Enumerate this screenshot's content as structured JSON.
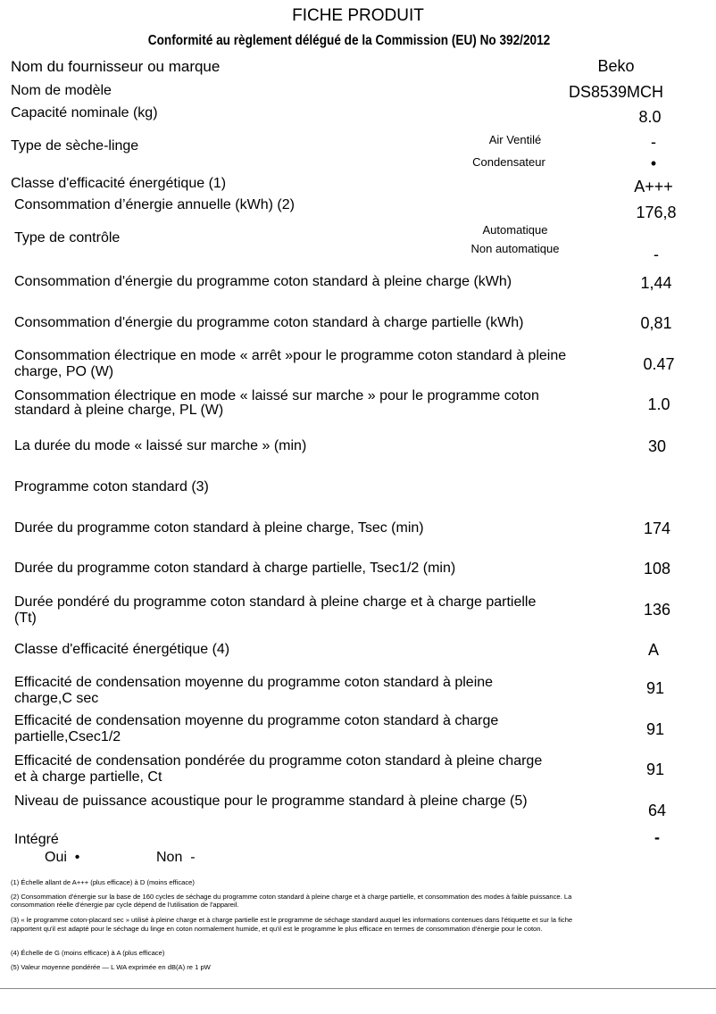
{
  "title": "FICHE PRODUIT",
  "subtitle": "Conformité au règlement délégué de la Commission (EU) No 392/2012",
  "rows": {
    "supplier": {
      "label": "Nom du fournisseur ou marque",
      "value": "Beko"
    },
    "model": {
      "label": "Nom de modèle",
      "value": "DS8539MCH"
    },
    "capacity": {
      "label": "Capacité nominale (kg)",
      "value": "8.0"
    },
    "dryer_type": {
      "label": "Type de sèche-linge",
      "opt1": "Air Ventilé",
      "val1": "-",
      "opt2": "Condensateur",
      "val2": "•"
    },
    "energy_class": {
      "label": "Classe d'efficacité énergétique (1)",
      "value": "A+++"
    },
    "annual": {
      "label": "Consommation d’énergie annuelle (kWh) (2)",
      "value": "176,8"
    },
    "control": {
      "label": "Type de contrôle",
      "opt1": "Automatique",
      "val1": "",
      "opt2": "Non automatique",
      "val2": "-"
    },
    "e_full": {
      "label": "Consommation d'énergie du programme coton standard à pleine charge (kWh)",
      "value": "1,44"
    },
    "e_part": {
      "label": "Consommation d'énergie du programme coton standard à charge partielle (kWh)",
      "value": "0,81"
    },
    "po": {
      "label": "Consommation électrique en mode « arrêt »pour le programme coton standard à pleine charge, PO (W)",
      "value": "0.47"
    },
    "pl": {
      "label": "Consommation électrique en mode « laissé sur marche » pour le programme coton standard à pleine charge, PL (W)",
      "value": "1.0"
    },
    "left_on": {
      "label": "La durée du mode « laissé sur marche » (min)",
      "value": "30"
    },
    "std_prog": {
      "label": "Programme coton standard (3)"
    },
    "t_full": {
      "label": "Durée du programme coton standard à pleine charge, Tsec (min)",
      "value": "174"
    },
    "t_part": {
      "label": "Durée du programme coton standard à charge partielle, Tsec1/2 (min)",
      "value": "108"
    },
    "t_weighted": {
      "label": "Durée pondéré du programme coton standard à pleine charge et à charge partielle (Tt)",
      "value": "136"
    },
    "cond_class": {
      "label": "Classe d'efficacité énergétique (4)",
      "value": "A"
    },
    "c_full": {
      "label": "Efficacité de condensation moyenne du programme coton standard à pleine charge,C sec",
      "value": "91"
    },
    "c_part": {
      "label": "Efficacité de condensation moyenne du programme coton standard à charge partielle,Csec1/2",
      "value": "91"
    },
    "c_weighted": {
      "label": "Efficacité de condensation pondérée du programme coton standard à pleine charge et à charge partielle, Ct",
      "value": "91"
    },
    "noise": {
      "label": "Niveau de puissance acoustique pour le programme standard à pleine charge (5)",
      "value": "64"
    },
    "built_in": {
      "label": "Intégré",
      "value": "-",
      "yes": "Oui  •",
      "no": "Non  -"
    }
  },
  "footnotes": [
    "(1) Échelle allant de A+++ (plus efficace) à D (moins efficace)",
    "(2) Consommation d'énergie sur la base de 160 cycles de séchage du programme coton standard à pleine charge et à charge partielle, et consommation des modes à faible puissance. La consommation réelle d'énergie par cycle dépend de l'utilisation de l'appareil.",
    "(3) « le programme coton-placard sec » utilisé à pleine charge et à charge partielle est le programme de séchage standard auquel les informations contenues dans l'étiquette et sur la fiche rapportent qu'il est adapté pour le séchage du linge en coton normalement humide, et qu'il est le programme le plus efficace en termes de consommation d'énergie pour le coton.",
    "(4) Échelle de G (moins efficace) à A (plus efficace)",
    "(5) Valeur moyenne pondérée — L WA exprimée en dB(A) re 1 pW"
  ]
}
